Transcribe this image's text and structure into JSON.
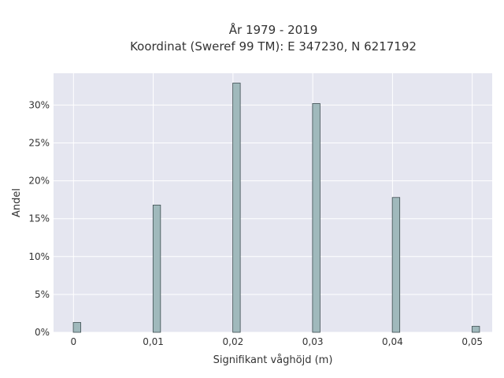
{
  "chart_data": {
    "type": "bar",
    "title": "År 1979 - 2019",
    "subtitle": "Koordinat (Sweref 99 TM): E 347230, N 6217192",
    "xlabel": "Signifikant våghöjd (m)",
    "ylabel": "Andel",
    "x_ticks": [
      "0",
      "0,01",
      "0,02",
      "0,03",
      "0,04",
      "0,05"
    ],
    "y_ticks": [
      "0%",
      "5%",
      "10%",
      "15%",
      "20%",
      "25%",
      "30%"
    ],
    "xlim": [
      -0.0025,
      0.0525
    ],
    "ylim": [
      0,
      34.2
    ],
    "series": [
      {
        "x": [
          0,
          0.01,
          0.02,
          0.03,
          0.04,
          0.05
        ],
        "values": [
          1.3,
          16.8,
          32.9,
          30.2,
          17.8,
          0.8
        ]
      }
    ],
    "grid": true,
    "colors": {
      "bar_fill": "#a0b9bc",
      "bar_stroke": "#3f4f52",
      "plot_bg": "#e5e6f0",
      "grid": "#ffffff"
    }
  }
}
